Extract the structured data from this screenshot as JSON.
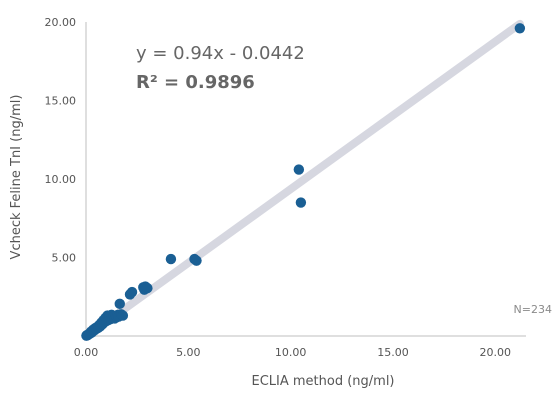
{
  "chart_data": {
    "type": "scatter",
    "title": "",
    "xlabel": "ECLIA method (ng/ml)",
    "ylabel": "Vcheck Feline TnI (ng/ml)",
    "xlim": [
      0,
      21.5
    ],
    "ylim": [
      0,
      20
    ],
    "x_ticks": [
      "0.00",
      "5.00",
      "10.00",
      "15.00",
      "20.00"
    ],
    "y_ticks": [
      "5.00",
      "10.00",
      "15.00",
      "20.00"
    ],
    "x_tick_values": [
      0,
      5,
      10,
      15,
      20
    ],
    "y_tick_values": [
      5,
      10,
      15,
      20
    ],
    "grid": false,
    "point_color": "#1a5f94",
    "trendline_color": "#d6d7e0",
    "annotations": {
      "equation": "y = 0.94x - 0.0442",
      "r_squared": "R² = 0.9896",
      "n": "N=234"
    },
    "trendline": {
      "slope": 0.94,
      "intercept": -0.0442,
      "x_start": 0,
      "x_end": 21.2
    },
    "points": [
      {
        "x": 0.02,
        "y": 0.02
      },
      {
        "x": 0.05,
        "y": 0.06
      },
      {
        "x": 0.08,
        "y": 0.05
      },
      {
        "x": 0.12,
        "y": 0.1
      },
      {
        "x": 0.15,
        "y": 0.12
      },
      {
        "x": 0.18,
        "y": 0.15
      },
      {
        "x": 0.22,
        "y": 0.2
      },
      {
        "x": 0.25,
        "y": 0.28
      },
      {
        "x": 0.28,
        "y": 0.22
      },
      {
        "x": 0.32,
        "y": 0.3
      },
      {
        "x": 0.35,
        "y": 0.4
      },
      {
        "x": 0.4,
        "y": 0.35
      },
      {
        "x": 0.45,
        "y": 0.5
      },
      {
        "x": 0.5,
        "y": 0.45
      },
      {
        "x": 0.55,
        "y": 0.58
      },
      {
        "x": 0.6,
        "y": 0.52
      },
      {
        "x": 0.65,
        "y": 0.7
      },
      {
        "x": 0.7,
        "y": 0.62
      },
      {
        "x": 0.75,
        "y": 0.85
      },
      {
        "x": 0.8,
        "y": 0.74
      },
      {
        "x": 0.85,
        "y": 1.0
      },
      {
        "x": 0.9,
        "y": 0.88
      },
      {
        "x": 0.95,
        "y": 1.15
      },
      {
        "x": 1.0,
        "y": 0.96
      },
      {
        "x": 1.05,
        "y": 1.3
      },
      {
        "x": 1.1,
        "y": 1.02
      },
      {
        "x": 1.15,
        "y": 1.22
      },
      {
        "x": 1.2,
        "y": 1.08
      },
      {
        "x": 1.25,
        "y": 1.35
      },
      {
        "x": 1.3,
        "y": 1.16
      },
      {
        "x": 1.35,
        "y": 1.26
      },
      {
        "x": 1.4,
        "y": 1.12
      },
      {
        "x": 1.45,
        "y": 1.28
      },
      {
        "x": 1.5,
        "y": 1.2
      },
      {
        "x": 1.55,
        "y": 1.34
      },
      {
        "x": 1.6,
        "y": 1.24
      },
      {
        "x": 1.65,
        "y": 2.05
      },
      {
        "x": 1.72,
        "y": 1.38
      },
      {
        "x": 1.8,
        "y": 1.3
      },
      {
        "x": 2.15,
        "y": 2.65
      },
      {
        "x": 2.25,
        "y": 2.8
      },
      {
        "x": 2.8,
        "y": 3.1
      },
      {
        "x": 2.85,
        "y": 2.95
      },
      {
        "x": 2.9,
        "y": 3.15
      },
      {
        "x": 3.0,
        "y": 3.05
      },
      {
        "x": 4.15,
        "y": 4.9
      },
      {
        "x": 5.3,
        "y": 4.9
      },
      {
        "x": 5.4,
        "y": 4.8
      },
      {
        "x": 10.4,
        "y": 10.6
      },
      {
        "x": 10.5,
        "y": 8.5
      },
      {
        "x": 21.2,
        "y": 19.6
      }
    ]
  }
}
